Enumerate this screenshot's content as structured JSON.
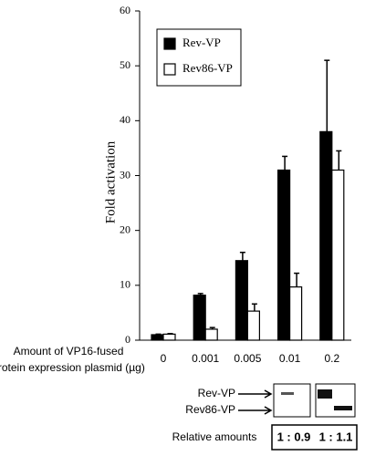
{
  "chart_data": {
    "type": "bar",
    "ylabel": "Fold activation",
    "xlabel": [
      "Amount of VP16-fused",
      "protein expression plasmid (µg)"
    ],
    "categories": [
      "0",
      "0.001",
      "0.005",
      "0.01",
      "0.2"
    ],
    "series": [
      {
        "name": "Rev-VP",
        "color": "#000000",
        "values": [
          1.0,
          8.2,
          14.5,
          31,
          38
        ],
        "errors": [
          0.1,
          0.3,
          1.5,
          2.5,
          13
        ]
      },
      {
        "name": "Rev86-VP",
        "color": "#ffffff",
        "values": [
          1.1,
          2.0,
          5.3,
          9.7,
          31
        ],
        "errors": [
          0.1,
          0.3,
          1.3,
          2.5,
          3.5
        ]
      }
    ],
    "ylim": [
      0,
      60
    ],
    "yticks": [
      0,
      10,
      20,
      30,
      40,
      50,
      60
    ],
    "grid": false,
    "legend": "upper left"
  },
  "blot": {
    "labels": [
      "Rev-VP",
      "Rev86-VP"
    ],
    "relative_label": "Relative amounts",
    "ratios": [
      "1 : 0.9",
      "1 : 1.1"
    ]
  }
}
